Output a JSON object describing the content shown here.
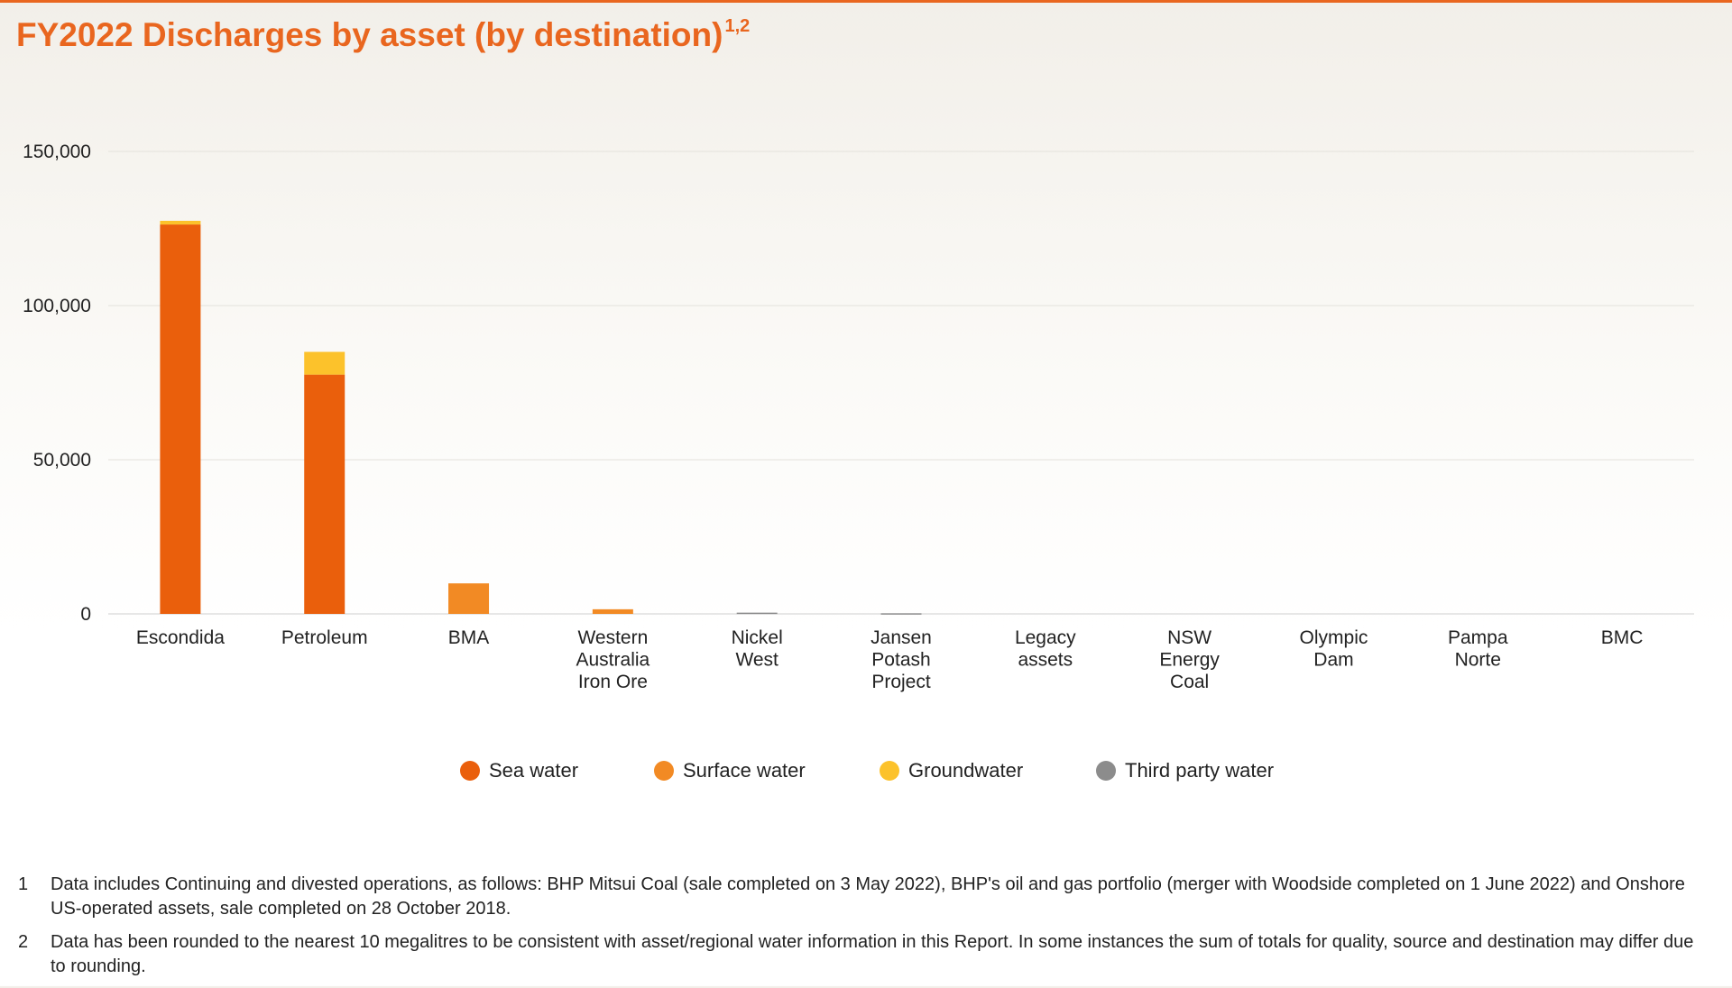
{
  "title": "FY2022 Discharges by asset (by destination)",
  "title_superscript": "1,2",
  "chart_data": {
    "type": "bar",
    "stacked": true,
    "categories": [
      "Escondida",
      "Petroleum",
      "BMA",
      "Western Australia Iron Ore",
      "Nickel West",
      "Jansen Potash Project",
      "Legacy assets",
      "NSW Energy Coal",
      "Olympic Dam",
      "Pampa Norte",
      "BMC"
    ],
    "category_lines": [
      [
        "Escondida"
      ],
      [
        "Petroleum"
      ],
      [
        "BMA"
      ],
      [
        "Western",
        "Australia",
        "Iron Ore"
      ],
      [
        "Nickel",
        "West"
      ],
      [
        "Jansen",
        "Potash",
        "Project"
      ],
      [
        "Legacy",
        "assets"
      ],
      [
        "NSW",
        "Energy",
        "Coal"
      ],
      [
        "Olympic",
        "Dam"
      ],
      [
        "Pampa",
        "Norte"
      ],
      [
        "BMC"
      ]
    ],
    "series": [
      {
        "name": "Sea water",
        "color": "#ea5f0c",
        "values": [
          126300,
          77600,
          0,
          0,
          0,
          0,
          0,
          0,
          0,
          0,
          0
        ]
      },
      {
        "name": "Surface water",
        "color": "#f28a24",
        "values": [
          0,
          0,
          9900,
          1500,
          0,
          0,
          0,
          0,
          0,
          0,
          0
        ]
      },
      {
        "name": "Groundwater",
        "color": "#fcc22b",
        "values": [
          1200,
          7400,
          0,
          0,
          0,
          0,
          0,
          0,
          0,
          0,
          0
        ]
      },
      {
        "name": "Third party water",
        "color": "#8c8c8c",
        "values": [
          0,
          0,
          0,
          0,
          400,
          200,
          0,
          0,
          0,
          0,
          0
        ]
      }
    ],
    "ylim": [
      0,
      150000
    ],
    "yticks": [
      0,
      50000,
      100000,
      150000
    ],
    "ytick_labels": [
      "0",
      "50,000",
      "100,000",
      "150,000"
    ],
    "grid": true,
    "legend_position": "bottom"
  },
  "footnotes": [
    {
      "num": "1",
      "text": "Data includes Continuing and divested operations, as follows: BHP Mitsui Coal (sale completed on 3 May 2022), BHP's oil and gas portfolio (merger with Woodside completed on 1 June 2022) and Onshore US-operated assets, sale completed on 28 October 2018."
    },
    {
      "num": "2",
      "text": "Data has been rounded to the nearest 10 megalitres to be consistent with asset/regional water information in this Report. In some instances the sum of totals for quality, source and destination may differ due to rounding."
    }
  ]
}
